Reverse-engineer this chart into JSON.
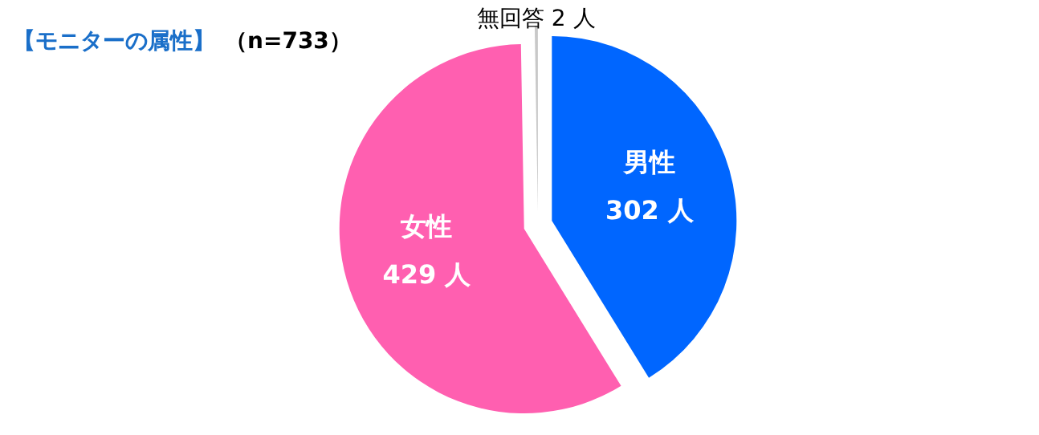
{
  "chart_data": {
    "type": "pie",
    "title": "【モニターの属性】",
    "subtitle": "（n=733）",
    "categories": [
      "男性",
      "女性",
      "無回答"
    ],
    "values": [
      302,
      429,
      2
    ],
    "colors": [
      "#0066ff",
      "#ff5fb0",
      "#c8c8c8"
    ],
    "value_labels": [
      "302 人",
      "429 人",
      "2 人"
    ]
  }
}
